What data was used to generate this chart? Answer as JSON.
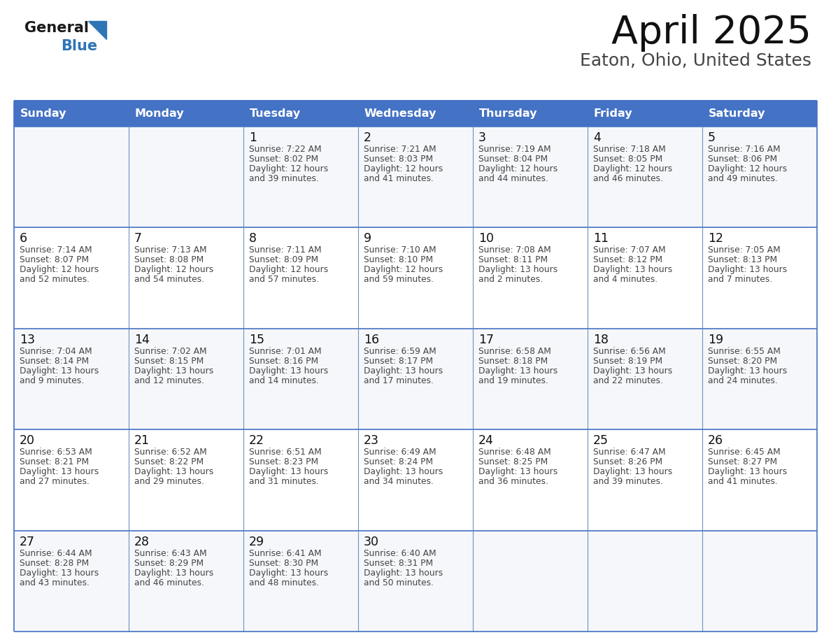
{
  "title": "April 2025",
  "subtitle": "Eaton, Ohio, United States",
  "header_bg_color": "#4472C4",
  "header_text_color": "#FFFFFF",
  "cell_bg_color": "#FFFFFF",
  "row1_bg": "#F0F4FA",
  "border_color": "#4472C4",
  "cell_border_color": "#7090C0",
  "day_names": [
    "Sunday",
    "Monday",
    "Tuesday",
    "Wednesday",
    "Thursday",
    "Friday",
    "Saturday"
  ],
  "title_color": "#111111",
  "subtitle_color": "#444444",
  "day_num_color": "#111111",
  "info_color": "#444444",
  "logo_general_color": "#1a1a1a",
  "logo_blue_color": "#2E75B6",
  "figwidth": 11.88,
  "figheight": 9.18,
  "dpi": 100,
  "weeks": [
    [
      {
        "day": "",
        "sunrise": "",
        "sunset": "",
        "daylight": ""
      },
      {
        "day": "",
        "sunrise": "",
        "sunset": "",
        "daylight": ""
      },
      {
        "day": "1",
        "sunrise": "7:22 AM",
        "sunset": "8:02 PM",
        "daylight": "12 hours and 39 minutes."
      },
      {
        "day": "2",
        "sunrise": "7:21 AM",
        "sunset": "8:03 PM",
        "daylight": "12 hours and 41 minutes."
      },
      {
        "day": "3",
        "sunrise": "7:19 AM",
        "sunset": "8:04 PM",
        "daylight": "12 hours and 44 minutes."
      },
      {
        "day": "4",
        "sunrise": "7:18 AM",
        "sunset": "8:05 PM",
        "daylight": "12 hours and 46 minutes."
      },
      {
        "day": "5",
        "sunrise": "7:16 AM",
        "sunset": "8:06 PM",
        "daylight": "12 hours and 49 minutes."
      }
    ],
    [
      {
        "day": "6",
        "sunrise": "7:14 AM",
        "sunset": "8:07 PM",
        "daylight": "12 hours and 52 minutes."
      },
      {
        "day": "7",
        "sunrise": "7:13 AM",
        "sunset": "8:08 PM",
        "daylight": "12 hours and 54 minutes."
      },
      {
        "day": "8",
        "sunrise": "7:11 AM",
        "sunset": "8:09 PM",
        "daylight": "12 hours and 57 minutes."
      },
      {
        "day": "9",
        "sunrise": "7:10 AM",
        "sunset": "8:10 PM",
        "daylight": "12 hours and 59 minutes."
      },
      {
        "day": "10",
        "sunrise": "7:08 AM",
        "sunset": "8:11 PM",
        "daylight": "13 hours and 2 minutes."
      },
      {
        "day": "11",
        "sunrise": "7:07 AM",
        "sunset": "8:12 PM",
        "daylight": "13 hours and 4 minutes."
      },
      {
        "day": "12",
        "sunrise": "7:05 AM",
        "sunset": "8:13 PM",
        "daylight": "13 hours and 7 minutes."
      }
    ],
    [
      {
        "day": "13",
        "sunrise": "7:04 AM",
        "sunset": "8:14 PM",
        "daylight": "13 hours and 9 minutes."
      },
      {
        "day": "14",
        "sunrise": "7:02 AM",
        "sunset": "8:15 PM",
        "daylight": "13 hours and 12 minutes."
      },
      {
        "day": "15",
        "sunrise": "7:01 AM",
        "sunset": "8:16 PM",
        "daylight": "13 hours and 14 minutes."
      },
      {
        "day": "16",
        "sunrise": "6:59 AM",
        "sunset": "8:17 PM",
        "daylight": "13 hours and 17 minutes."
      },
      {
        "day": "17",
        "sunrise": "6:58 AM",
        "sunset": "8:18 PM",
        "daylight": "13 hours and 19 minutes."
      },
      {
        "day": "18",
        "sunrise": "6:56 AM",
        "sunset": "8:19 PM",
        "daylight": "13 hours and 22 minutes."
      },
      {
        "day": "19",
        "sunrise": "6:55 AM",
        "sunset": "8:20 PM",
        "daylight": "13 hours and 24 minutes."
      }
    ],
    [
      {
        "day": "20",
        "sunrise": "6:53 AM",
        "sunset": "8:21 PM",
        "daylight": "13 hours and 27 minutes."
      },
      {
        "day": "21",
        "sunrise": "6:52 AM",
        "sunset": "8:22 PM",
        "daylight": "13 hours and 29 minutes."
      },
      {
        "day": "22",
        "sunrise": "6:51 AM",
        "sunset": "8:23 PM",
        "daylight": "13 hours and 31 minutes."
      },
      {
        "day": "23",
        "sunrise": "6:49 AM",
        "sunset": "8:24 PM",
        "daylight": "13 hours and 34 minutes."
      },
      {
        "day": "24",
        "sunrise": "6:48 AM",
        "sunset": "8:25 PM",
        "daylight": "13 hours and 36 minutes."
      },
      {
        "day": "25",
        "sunrise": "6:47 AM",
        "sunset": "8:26 PM",
        "daylight": "13 hours and 39 minutes."
      },
      {
        "day": "26",
        "sunrise": "6:45 AM",
        "sunset": "8:27 PM",
        "daylight": "13 hours and 41 minutes."
      }
    ],
    [
      {
        "day": "27",
        "sunrise": "6:44 AM",
        "sunset": "8:28 PM",
        "daylight": "13 hours and 43 minutes."
      },
      {
        "day": "28",
        "sunrise": "6:43 AM",
        "sunset": "8:29 PM",
        "daylight": "13 hours and 46 minutes."
      },
      {
        "day": "29",
        "sunrise": "6:41 AM",
        "sunset": "8:30 PM",
        "daylight": "13 hours and 48 minutes."
      },
      {
        "day": "30",
        "sunrise": "6:40 AM",
        "sunset": "8:31 PM",
        "daylight": "13 hours and 50 minutes."
      },
      {
        "day": "",
        "sunrise": "",
        "sunset": "",
        "daylight": ""
      },
      {
        "day": "",
        "sunrise": "",
        "sunset": "",
        "daylight": ""
      },
      {
        "day": "",
        "sunrise": "",
        "sunset": "",
        "daylight": ""
      }
    ]
  ]
}
